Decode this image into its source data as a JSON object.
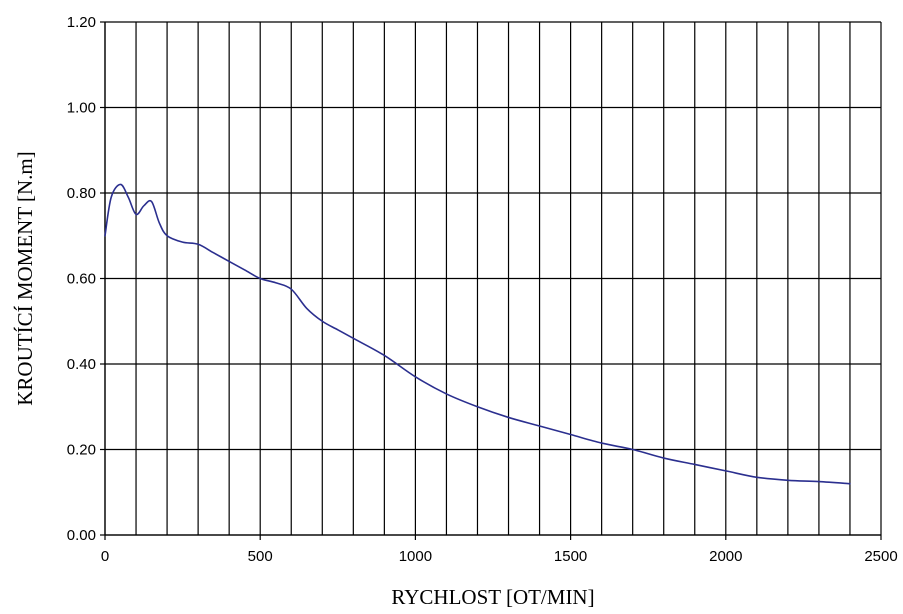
{
  "chart_data": {
    "type": "line",
    "title": "",
    "xlabel": "RYCHLOST [OT/MIN]",
    "ylabel": "KROUTÍCÍ MOMENT [N.m]",
    "xlim": [
      0,
      2500
    ],
    "ylim": [
      0,
      1.2
    ],
    "x_ticks": [
      0,
      500,
      1000,
      1500,
      2000,
      2500
    ],
    "x_tick_labels": [
      "0",
      "500",
      "1000",
      "1500",
      "2000",
      "2500"
    ],
    "y_ticks": [
      0,
      0.2,
      0.4,
      0.6,
      0.8,
      1.0,
      1.2
    ],
    "y_tick_labels": [
      "0.00",
      "0.20",
      "0.40",
      "0.60",
      "0.80",
      "1.00",
      "1.20"
    ],
    "grid": true,
    "vertical_grid_step": 100,
    "horizontal_grid_step": 0.2,
    "legend": "none",
    "series": [
      {
        "color": "#2b2f8f",
        "x": [
          0,
          20,
          50,
          75,
          100,
          125,
          150,
          175,
          200,
          250,
          300,
          350,
          400,
          450,
          500,
          550,
          600,
          650,
          700,
          750,
          800,
          900,
          1000,
          1100,
          1200,
          1300,
          1400,
          1500,
          1600,
          1700,
          1800,
          1900,
          2000,
          2100,
          2200,
          2300,
          2400
        ],
        "y": [
          0.7,
          0.79,
          0.82,
          0.79,
          0.75,
          0.77,
          0.78,
          0.73,
          0.7,
          0.685,
          0.68,
          0.66,
          0.64,
          0.62,
          0.6,
          0.59,
          0.575,
          0.53,
          0.5,
          0.48,
          0.46,
          0.42,
          0.37,
          0.33,
          0.3,
          0.275,
          0.255,
          0.235,
          0.215,
          0.2,
          0.18,
          0.165,
          0.15,
          0.135,
          0.128,
          0.125,
          0.12
        ]
      }
    ]
  }
}
